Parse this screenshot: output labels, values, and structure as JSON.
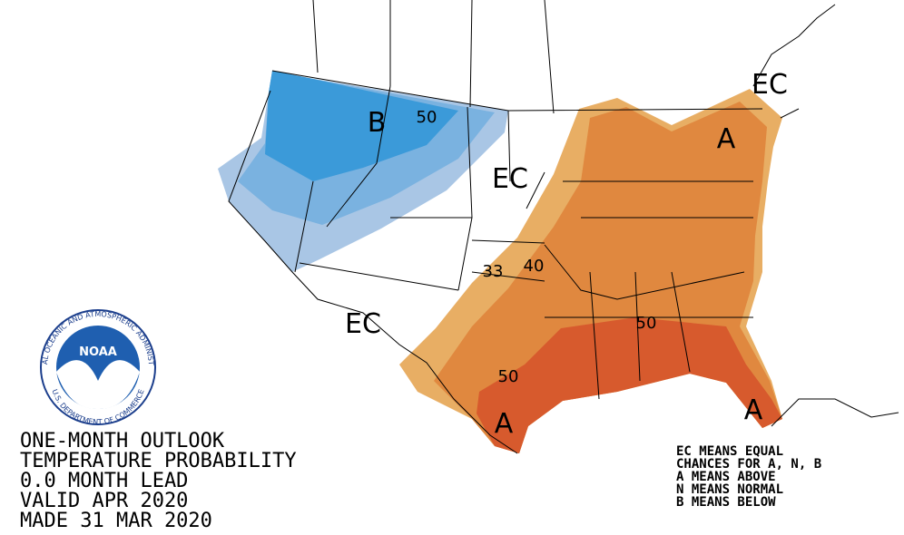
{
  "title_block": {
    "lines": [
      "ONE-MONTH OUTLOOK",
      "TEMPERATURE PROBABILITY",
      "0.0 MONTH LEAD",
      "VALID APR 2020",
      "MADE 31 MAR 2020"
    ]
  },
  "legend": {
    "lines": [
      "EC MEANS EQUAL",
      "CHANCES FOR A, N, B",
      "A MEANS ABOVE",
      "N MEANS NORMAL",
      "B MEANS BELOW"
    ]
  },
  "logo": {
    "name": "NOAA",
    "ring_top": "NATIONAL OCEANIC AND ATMOSPHERIC ADMINISTRATION",
    "ring_bottom": "U.S. DEPARTMENT OF COMMERCE"
  },
  "map_labels": [
    "B",
    "50",
    "EC",
    "EC",
    "EC",
    "33",
    "40",
    "A",
    "50",
    "50",
    "A",
    "A"
  ]
}
